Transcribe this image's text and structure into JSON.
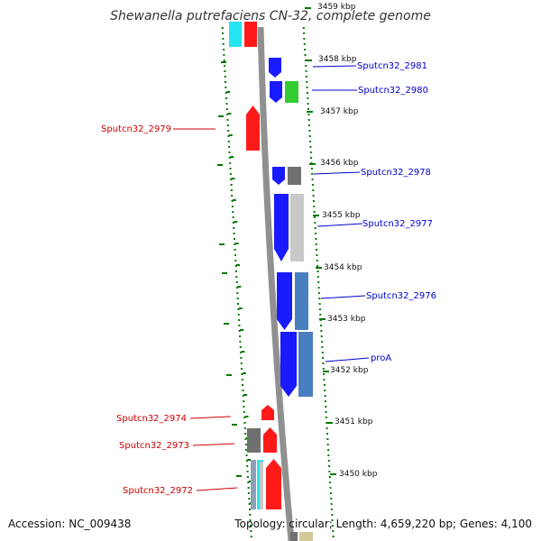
{
  "title": "Shewanella putrefaciens CN-32, complete genome",
  "footer": {
    "accession": "Accession: NC_009438",
    "topology": "Topology: circular; Length: 4,659,220 bp; Genes: 4,100"
  },
  "colors": {
    "forward_gene": "#1a1aff",
    "reverse_gene": "#ff1a1a",
    "backbone": "#909090",
    "tick": "#007a00",
    "label_blue": "#0000cc",
    "label_red": "#cc0000"
  },
  "ticks": [
    {
      "label": "3459 kbp"
    },
    {
      "label": "3458 kbp"
    },
    {
      "label": "3457 kbp"
    },
    {
      "label": "3456 kbp"
    },
    {
      "label": "3455 kbp"
    },
    {
      "label": "3454 kbp"
    },
    {
      "label": "3453 kbp"
    },
    {
      "label": "3452 kbp"
    },
    {
      "label": "3451 kbp"
    },
    {
      "label": "3450 kbp"
    }
  ],
  "gene_labels": [
    {
      "text": "Sputcn32_2981",
      "strand": "forward"
    },
    {
      "text": "Sputcn32_2980",
      "strand": "forward"
    },
    {
      "text": "Sputcn32_2979",
      "strand": "reverse"
    },
    {
      "text": "Sputcn32_2978",
      "strand": "forward"
    },
    {
      "text": "Sputcn32_2977",
      "strand": "forward"
    },
    {
      "text": "Sputcn32_2976",
      "strand": "forward"
    },
    {
      "text": "proA",
      "strand": "forward"
    },
    {
      "text": "Sputcn32_2974",
      "strand": "reverse"
    },
    {
      "text": "Sputcn32_2973",
      "strand": "reverse"
    },
    {
      "text": "Sputcn32_2972",
      "strand": "reverse"
    }
  ]
}
